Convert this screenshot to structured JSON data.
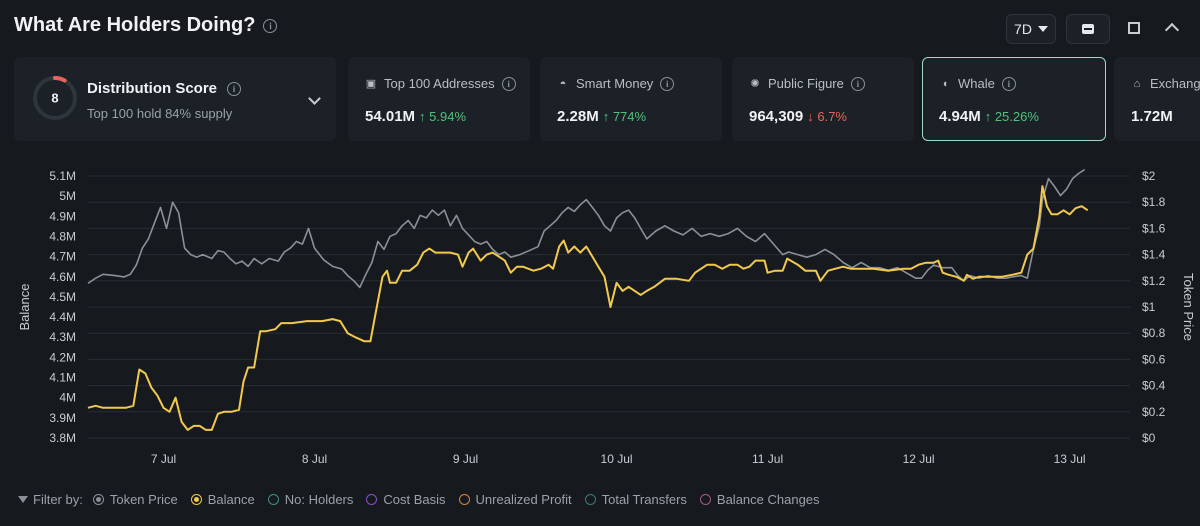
{
  "header": {
    "title": "What Are Holders Doing?"
  },
  "controls": {
    "range": "7D"
  },
  "distribution": {
    "score": "8",
    "name": "Distribution Score",
    "sub": "Top 100 hold 84% supply",
    "gauge_fraction": 0.08
  },
  "cards": [
    {
      "label": "Top 100 Addresses",
      "value": "54.01M",
      "change": "↑ 5.94%",
      "dir": "up",
      "icon": "wallet-icon"
    },
    {
      "label": "Smart Money",
      "value": "2.28M",
      "change": "↑ 774%",
      "dir": "up",
      "icon": "smart-money-icon"
    },
    {
      "label": "Public Figure",
      "value": "964,309",
      "change": "↓ 6.7%",
      "dir": "down",
      "icon": "public-figure-icon"
    },
    {
      "label": "Whale",
      "value": "4.94M",
      "change": "↑ 25.26%",
      "dir": "up",
      "icon": "whale-icon",
      "selected": true
    },
    {
      "label": "Exchange",
      "value": "1.72M",
      "change": "",
      "dir": "up",
      "icon": "exchange-icon"
    }
  ],
  "legend": {
    "filter_label": "Filter by:",
    "items": [
      {
        "label": "Token Price",
        "color": "#8a9099",
        "active": true
      },
      {
        "label": "Balance",
        "color": "#f2c94c",
        "active": true
      },
      {
        "label": "No: Holders",
        "color": "#3f8f7d",
        "active": false
      },
      {
        "label": "Cost Basis",
        "color": "#8a4fc7",
        "active": false
      },
      {
        "label": "Unrealized Profit",
        "color": "#d08a3a",
        "active": false
      },
      {
        "label": "Total Transfers",
        "color": "#3f7a74",
        "active": false
      },
      {
        "label": "Balance Changes",
        "color": "#a15a8a",
        "active": false
      }
    ]
  },
  "chart_data": {
    "type": "line",
    "ylabel": "Balance",
    "y2label": "Token Price",
    "x_ticks": [
      "7 Jul",
      "8 Jul",
      "9 Jul",
      "10 Jul",
      "11 Jul",
      "12 Jul",
      "13 Jul"
    ],
    "x_tick_positions": [
      0.5,
      1.5,
      2.5,
      3.5,
      4.5,
      5.5,
      6.5
    ],
    "xlim": [
      0,
      6.9
    ],
    "y_ticks": [
      "5.1M",
      "5M",
      "4.9M",
      "4.8M",
      "4.7M",
      "4.6M",
      "4.5M",
      "4.4M",
      "4.3M",
      "4.2M",
      "4.1M",
      "4M",
      "3.9M",
      "3.8M"
    ],
    "ylim": [
      3.8,
      5.1
    ],
    "y2_ticks": [
      "$2",
      "$1.8",
      "$1.6",
      "$1.4",
      "$1.2",
      "$1",
      "$0.8",
      "$0.6",
      "$0.4",
      "$0.2",
      "$0"
    ],
    "y2lim": [
      0,
      2
    ],
    "grid": true,
    "series": [
      {
        "name": "Balance",
        "axis": "left",
        "color": "#f2c94c",
        "points": [
          [
            0.0,
            3.95
          ],
          [
            0.05,
            3.96
          ],
          [
            0.1,
            3.95
          ],
          [
            0.15,
            3.95
          ],
          [
            0.2,
            3.95
          ],
          [
            0.25,
            3.95
          ],
          [
            0.3,
            3.96
          ],
          [
            0.34,
            4.14
          ],
          [
            0.38,
            4.12
          ],
          [
            0.42,
            4.05
          ],
          [
            0.46,
            4.01
          ],
          [
            0.5,
            3.95
          ],
          [
            0.54,
            3.93
          ],
          [
            0.58,
            4.0
          ],
          [
            0.62,
            3.88
          ],
          [
            0.66,
            3.84
          ],
          [
            0.7,
            3.86
          ],
          [
            0.74,
            3.86
          ],
          [
            0.78,
            3.84
          ],
          [
            0.82,
            3.84
          ],
          [
            0.86,
            3.92
          ],
          [
            0.9,
            3.93
          ],
          [
            0.95,
            3.93
          ],
          [
            1.0,
            3.94
          ],
          [
            1.03,
            4.08
          ],
          [
            1.06,
            4.15
          ],
          [
            1.1,
            4.15
          ],
          [
            1.14,
            4.33
          ],
          [
            1.18,
            4.33
          ],
          [
            1.24,
            4.34
          ],
          [
            1.28,
            4.37
          ],
          [
            1.35,
            4.37
          ],
          [
            1.45,
            4.38
          ],
          [
            1.55,
            4.38
          ],
          [
            1.62,
            4.39
          ],
          [
            1.67,
            4.38
          ],
          [
            1.72,
            4.32
          ],
          [
            1.77,
            4.3
          ],
          [
            1.83,
            4.28
          ],
          [
            1.87,
            4.28
          ],
          [
            1.9,
            4.4
          ],
          [
            1.95,
            4.6
          ],
          [
            1.98,
            4.63
          ],
          [
            2.0,
            4.57
          ],
          [
            2.04,
            4.57
          ],
          [
            2.08,
            4.63
          ],
          [
            2.13,
            4.63
          ],
          [
            2.18,
            4.66
          ],
          [
            2.22,
            4.72
          ],
          [
            2.26,
            4.74
          ],
          [
            2.3,
            4.72
          ],
          [
            2.35,
            4.72
          ],
          [
            2.4,
            4.72
          ],
          [
            2.45,
            4.71
          ],
          [
            2.48,
            4.65
          ],
          [
            2.52,
            4.72
          ],
          [
            2.55,
            4.74
          ],
          [
            2.6,
            4.68
          ],
          [
            2.64,
            4.71
          ],
          [
            2.68,
            4.72
          ],
          [
            2.72,
            4.7
          ],
          [
            2.76,
            4.68
          ],
          [
            2.8,
            4.62
          ],
          [
            2.84,
            4.65
          ],
          [
            2.88,
            4.65
          ],
          [
            2.95,
            4.63
          ],
          [
            3.0,
            4.64
          ],
          [
            3.05,
            4.66
          ],
          [
            3.08,
            4.64
          ],
          [
            3.12,
            4.75
          ],
          [
            3.15,
            4.78
          ],
          [
            3.18,
            4.72
          ],
          [
            3.22,
            4.75
          ],
          [
            3.26,
            4.72
          ],
          [
            3.3,
            4.75
          ],
          [
            3.34,
            4.7
          ],
          [
            3.38,
            4.65
          ],
          [
            3.42,
            4.6
          ],
          [
            3.46,
            4.45
          ],
          [
            3.5,
            4.57
          ],
          [
            3.54,
            4.53
          ],
          [
            3.58,
            4.55
          ],
          [
            3.62,
            4.53
          ],
          [
            3.66,
            4.51
          ],
          [
            3.7,
            4.53
          ],
          [
            3.75,
            4.55
          ],
          [
            3.82,
            4.59
          ],
          [
            3.9,
            4.59
          ],
          [
            3.98,
            4.58
          ],
          [
            4.02,
            4.62
          ],
          [
            4.06,
            4.64
          ],
          [
            4.1,
            4.66
          ],
          [
            4.15,
            4.66
          ],
          [
            4.2,
            4.64
          ],
          [
            4.25,
            4.66
          ],
          [
            4.3,
            4.66
          ],
          [
            4.34,
            4.64
          ],
          [
            4.38,
            4.65
          ],
          [
            4.42,
            4.68
          ],
          [
            4.48,
            4.68
          ],
          [
            4.5,
            4.62
          ],
          [
            4.55,
            4.63
          ],
          [
            4.6,
            4.63
          ],
          [
            4.63,
            4.69
          ],
          [
            4.7,
            4.66
          ],
          [
            4.75,
            4.63
          ],
          [
            4.82,
            4.63
          ],
          [
            4.85,
            4.58
          ],
          [
            4.9,
            4.63
          ],
          [
            4.95,
            4.64
          ],
          [
            5.0,
            4.65
          ],
          [
            5.05,
            4.64
          ],
          [
            5.1,
            4.64
          ],
          [
            5.2,
            4.64
          ],
          [
            5.3,
            4.63
          ],
          [
            5.4,
            4.64
          ],
          [
            5.45,
            4.64
          ],
          [
            5.5,
            4.66
          ],
          [
            5.55,
            4.67
          ],
          [
            5.6,
            4.67
          ],
          [
            5.63,
            4.68
          ],
          [
            5.66,
            4.62
          ],
          [
            5.7,
            4.61
          ],
          [
            5.75,
            4.6
          ],
          [
            5.8,
            4.58
          ],
          [
            5.82,
            4.61
          ],
          [
            5.86,
            4.59
          ],
          [
            5.9,
            4.6
          ],
          [
            5.95,
            4.6
          ],
          [
            6.05,
            4.6
          ],
          [
            6.12,
            4.61
          ],
          [
            6.18,
            4.62
          ],
          [
            6.22,
            4.71
          ],
          [
            6.26,
            4.74
          ],
          [
            6.3,
            4.9
          ],
          [
            6.32,
            5.05
          ],
          [
            6.35,
            4.95
          ],
          [
            6.38,
            4.91
          ],
          [
            6.42,
            4.91
          ],
          [
            6.46,
            4.93
          ],
          [
            6.5,
            4.91
          ],
          [
            6.54,
            4.94
          ],
          [
            6.58,
            4.95
          ],
          [
            6.62,
            4.93
          ]
        ]
      },
      {
        "name": "Token Price",
        "axis": "right",
        "color": "#8a9099",
        "points": [
          [
            0.0,
            1.18
          ],
          [
            0.05,
            1.22
          ],
          [
            0.1,
            1.25
          ],
          [
            0.18,
            1.24
          ],
          [
            0.24,
            1.23
          ],
          [
            0.28,
            1.25
          ],
          [
            0.32,
            1.32
          ],
          [
            0.36,
            1.45
          ],
          [
            0.4,
            1.52
          ],
          [
            0.44,
            1.64
          ],
          [
            0.48,
            1.76
          ],
          [
            0.52,
            1.6
          ],
          [
            0.56,
            1.8
          ],
          [
            0.6,
            1.72
          ],
          [
            0.64,
            1.45
          ],
          [
            0.68,
            1.4
          ],
          [
            0.72,
            1.38
          ],
          [
            0.76,
            1.4
          ],
          [
            0.82,
            1.37
          ],
          [
            0.86,
            1.43
          ],
          [
            0.9,
            1.42
          ],
          [
            0.94,
            1.37
          ],
          [
            0.98,
            1.33
          ],
          [
            1.02,
            1.35
          ],
          [
            1.06,
            1.31
          ],
          [
            1.1,
            1.37
          ],
          [
            1.15,
            1.33
          ],
          [
            1.2,
            1.37
          ],
          [
            1.26,
            1.35
          ],
          [
            1.3,
            1.42
          ],
          [
            1.34,
            1.45
          ],
          [
            1.38,
            1.5
          ],
          [
            1.42,
            1.48
          ],
          [
            1.46,
            1.6
          ],
          [
            1.5,
            1.45
          ],
          [
            1.56,
            1.36
          ],
          [
            1.62,
            1.31
          ],
          [
            1.68,
            1.29
          ],
          [
            1.72,
            1.24
          ],
          [
            1.76,
            1.2
          ],
          [
            1.8,
            1.15
          ],
          [
            1.84,
            1.25
          ],
          [
            1.88,
            1.34
          ],
          [
            1.92,
            1.5
          ],
          [
            1.96,
            1.44
          ],
          [
            2.0,
            1.54
          ],
          [
            2.04,
            1.56
          ],
          [
            2.08,
            1.62
          ],
          [
            2.12,
            1.66
          ],
          [
            2.16,
            1.6
          ],
          [
            2.2,
            1.7
          ],
          [
            2.24,
            1.68
          ],
          [
            2.28,
            1.74
          ],
          [
            2.32,
            1.7
          ],
          [
            2.36,
            1.74
          ],
          [
            2.4,
            1.62
          ],
          [
            2.44,
            1.7
          ],
          [
            2.48,
            1.6
          ],
          [
            2.52,
            1.55
          ],
          [
            2.56,
            1.5
          ],
          [
            2.6,
            1.48
          ],
          [
            2.64,
            1.5
          ],
          [
            2.68,
            1.44
          ],
          [
            2.72,
            1.4
          ],
          [
            2.76,
            1.42
          ],
          [
            2.8,
            1.38
          ],
          [
            2.86,
            1.4
          ],
          [
            2.92,
            1.43
          ],
          [
            2.98,
            1.46
          ],
          [
            3.02,
            1.58
          ],
          [
            3.06,
            1.62
          ],
          [
            3.1,
            1.66
          ],
          [
            3.14,
            1.72
          ],
          [
            3.18,
            1.76
          ],
          [
            3.22,
            1.73
          ],
          [
            3.26,
            1.78
          ],
          [
            3.3,
            1.82
          ],
          [
            3.34,
            1.76
          ],
          [
            3.38,
            1.7
          ],
          [
            3.42,
            1.62
          ],
          [
            3.46,
            1.58
          ],
          [
            3.5,
            1.68
          ],
          [
            3.54,
            1.72
          ],
          [
            3.58,
            1.74
          ],
          [
            3.62,
            1.68
          ],
          [
            3.66,
            1.6
          ],
          [
            3.7,
            1.52
          ],
          [
            3.76,
            1.58
          ],
          [
            3.82,
            1.62
          ],
          [
            3.88,
            1.58
          ],
          [
            3.94,
            1.55
          ],
          [
            4.0,
            1.6
          ],
          [
            4.06,
            1.54
          ],
          [
            4.12,
            1.56
          ],
          [
            4.18,
            1.54
          ],
          [
            4.24,
            1.56
          ],
          [
            4.3,
            1.6
          ],
          [
            4.36,
            1.54
          ],
          [
            4.42,
            1.5
          ],
          [
            4.48,
            1.56
          ],
          [
            4.54,
            1.48
          ],
          [
            4.6,
            1.4
          ],
          [
            4.64,
            1.42
          ],
          [
            4.7,
            1.4
          ],
          [
            4.76,
            1.38
          ],
          [
            4.82,
            1.4
          ],
          [
            4.88,
            1.44
          ],
          [
            4.94,
            1.4
          ],
          [
            5.0,
            1.34
          ],
          [
            5.06,
            1.3
          ],
          [
            5.12,
            1.34
          ],
          [
            5.18,
            1.3
          ],
          [
            5.24,
            1.3
          ],
          [
            5.3,
            1.28
          ],
          [
            5.36,
            1.3
          ],
          [
            5.42,
            1.26
          ],
          [
            5.48,
            1.22
          ],
          [
            5.52,
            1.22
          ],
          [
            5.56,
            1.28
          ],
          [
            5.6,
            1.32
          ],
          [
            5.66,
            1.3
          ],
          [
            5.72,
            1.3
          ],
          [
            5.76,
            1.24
          ],
          [
            5.8,
            1.2
          ],
          [
            5.84,
            1.24
          ],
          [
            5.9,
            1.22
          ],
          [
            5.96,
            1.24
          ],
          [
            6.02,
            1.22
          ],
          [
            6.08,
            1.22
          ],
          [
            6.12,
            1.23
          ],
          [
            6.18,
            1.24
          ],
          [
            6.22,
            1.22
          ],
          [
            6.26,
            1.44
          ],
          [
            6.3,
            1.62
          ],
          [
            6.32,
            1.82
          ],
          [
            6.36,
            1.98
          ],
          [
            6.4,
            1.92
          ],
          [
            6.44,
            1.85
          ],
          [
            6.48,
            1.9
          ],
          [
            6.52,
            1.98
          ],
          [
            6.56,
            2.02
          ],
          [
            6.6,
            2.05
          ]
        ]
      }
    ]
  }
}
